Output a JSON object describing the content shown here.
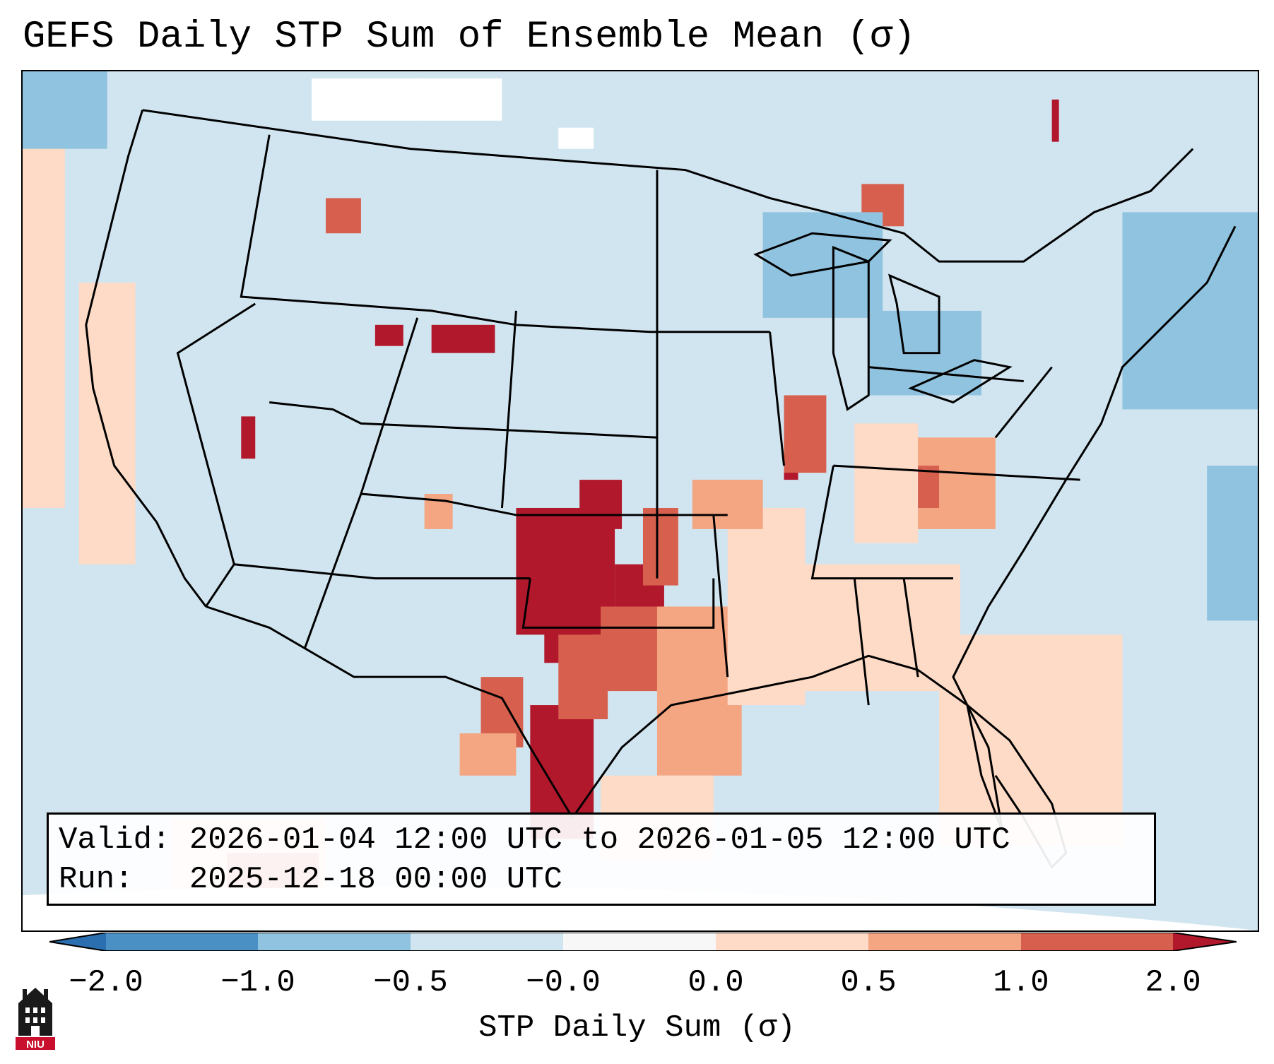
{
  "title": "GEFS Daily STP Sum of Ensemble Mean (σ)",
  "info": {
    "valid_line": "Valid: 2026-01-04 12:00 UTC to 2026-01-05 12:00 UTC",
    "run_line": "Run:   2025-12-18 00:00 UTC"
  },
  "colorbar": {
    "label": "STP Daily Sum (σ)",
    "ticks": [
      "−2.0",
      "−1.0",
      "−0.5",
      "−0.0",
      "0.0",
      "0.5",
      "1.0",
      "2.0"
    ],
    "colors": {
      "extend_low": "#2c6fb0",
      "neg_2_1": "#4a90c4",
      "neg_1_05": "#90c3df",
      "neg_05_0": "#d1e5f0",
      "zero": "#f7f7f7",
      "pos_0_05": "#fddbc7",
      "pos_05_1": "#f4a582",
      "pos_1_2": "#d6604d",
      "extend_high": "#b2182b"
    }
  },
  "map": {
    "background_color": "#d1e5f0",
    "outline_color": "#000000"
  },
  "logo": {
    "text": "NIU",
    "color": "#c8102e"
  }
}
